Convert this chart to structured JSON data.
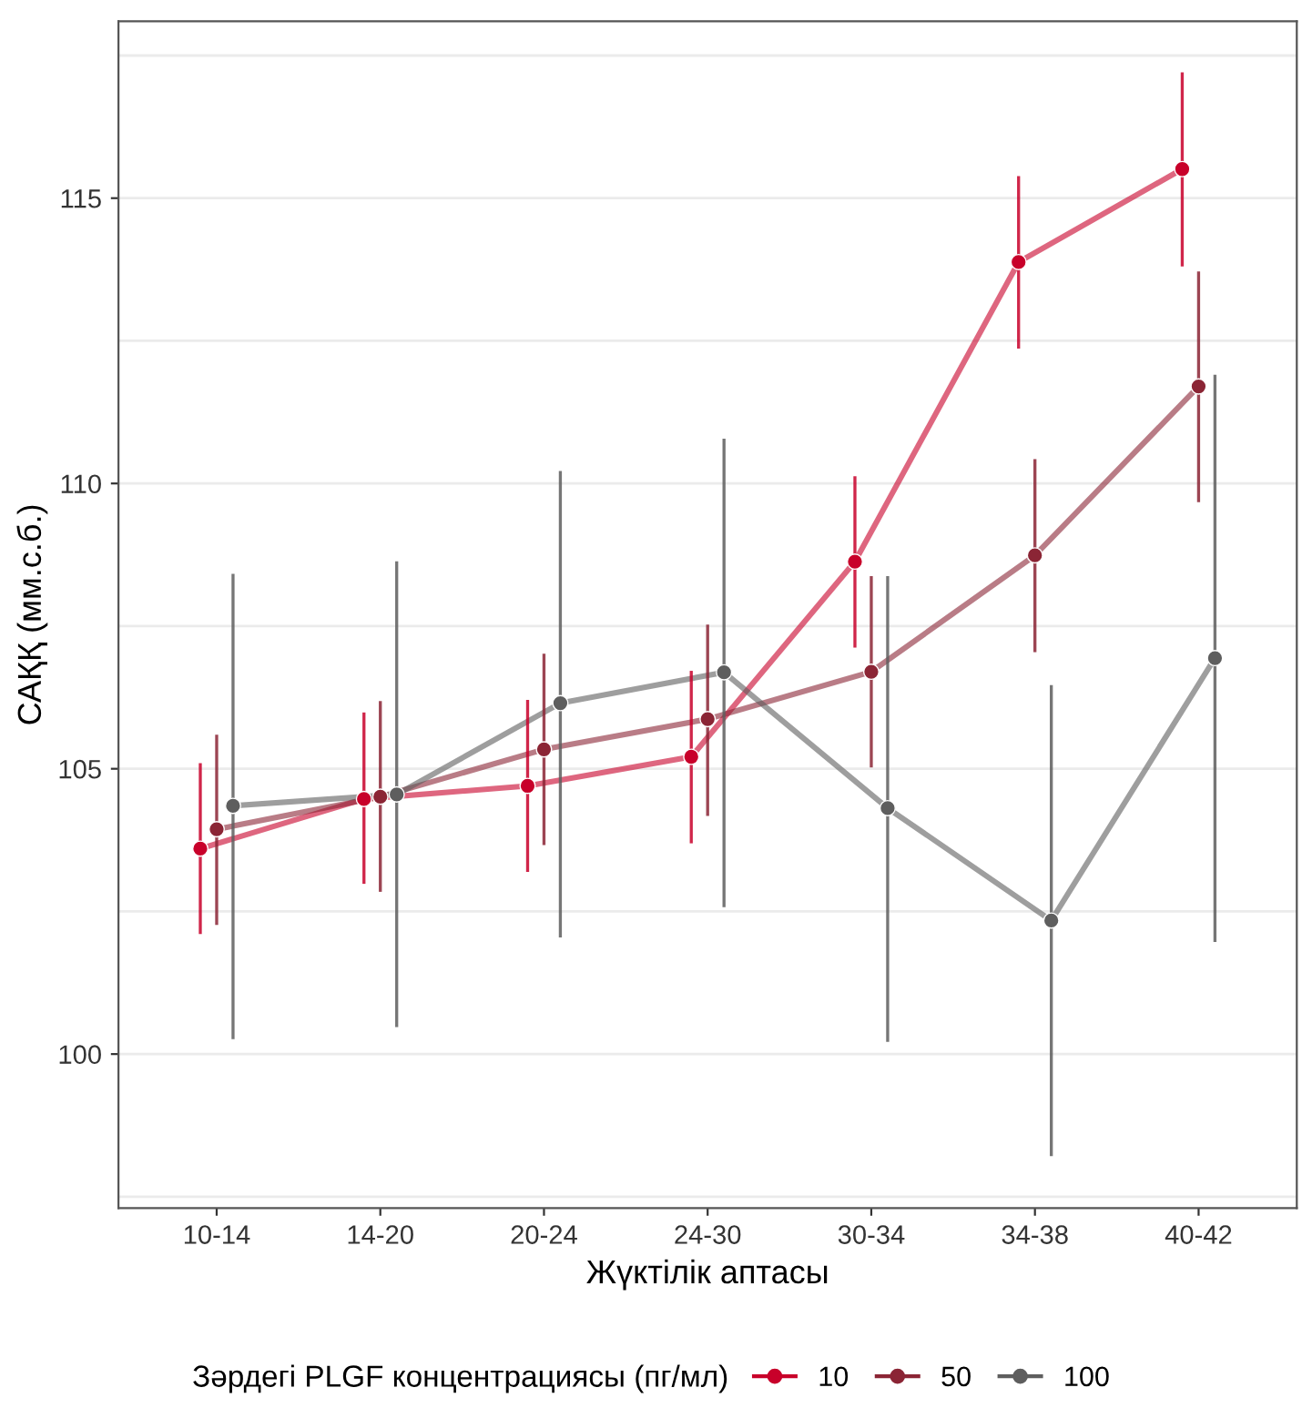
{
  "chart_data": {
    "type": "line",
    "xlabel": "Жүктілік аптасы",
    "ylabel": "САҚҚ (мм.с.б.)",
    "legend_title": "Зәрдегі PLGF концентрациясы (пг/мл)",
    "categories": [
      "10-14",
      "14-20",
      "20-24",
      "24-30",
      "30-34",
      "34-38",
      "40-42"
    ],
    "series": [
      {
        "name": "10",
        "color": "#c8002a",
        "values": [
          103.6,
          104.47,
          104.7,
          105.21,
          108.63,
          113.88,
          115.51
        ],
        "errors": [
          [
            102.13,
            105.07
          ],
          [
            103.01,
            105.96
          ],
          [
            103.22,
            106.18
          ],
          [
            103.72,
            106.69
          ],
          [
            107.15,
            110.1
          ],
          [
            112.39,
            115.36
          ],
          [
            113.83,
            117.18
          ]
        ]
      },
      {
        "name": "50",
        "color": "#8b2535",
        "values": [
          103.94,
          104.51,
          105.34,
          105.87,
          106.7,
          108.74,
          111.7
        ],
        "errors": [
          [
            102.29,
            105.57
          ],
          [
            102.87,
            106.16
          ],
          [
            103.69,
            106.99
          ],
          [
            104.2,
            107.5
          ],
          [
            105.05,
            108.35
          ],
          [
            107.07,
            110.4
          ],
          [
            109.7,
            113.69
          ]
        ]
      },
      {
        "name": "100",
        "color": "#5e5e5e",
        "values": [
          104.35,
          104.55,
          106.15,
          106.69,
          104.31,
          102.34,
          106.94
        ],
        "errors": [
          [
            100.29,
            108.39
          ],
          [
            100.5,
            108.61
          ],
          [
            102.07,
            110.19
          ],
          [
            102.6,
            110.76
          ],
          [
            100.24,
            108.35
          ],
          [
            98.24,
            106.44
          ],
          [
            101.99,
            111.88
          ]
        ]
      }
    ],
    "ylim": [
      97.3,
      118.1
    ],
    "yticks": [
      {
        "value": 97.5,
        "label": null
      },
      100,
      {
        "value": 102.5,
        "label": null
      },
      105,
      {
        "value": 107.5,
        "label": null
      },
      110,
      {
        "value": 112.5,
        "label": null
      },
      115,
      {
        "value": 117.5,
        "label": null
      }
    ],
    "grid": "y",
    "legend": "bottom",
    "marker": "circle",
    "line_style": "solid"
  }
}
